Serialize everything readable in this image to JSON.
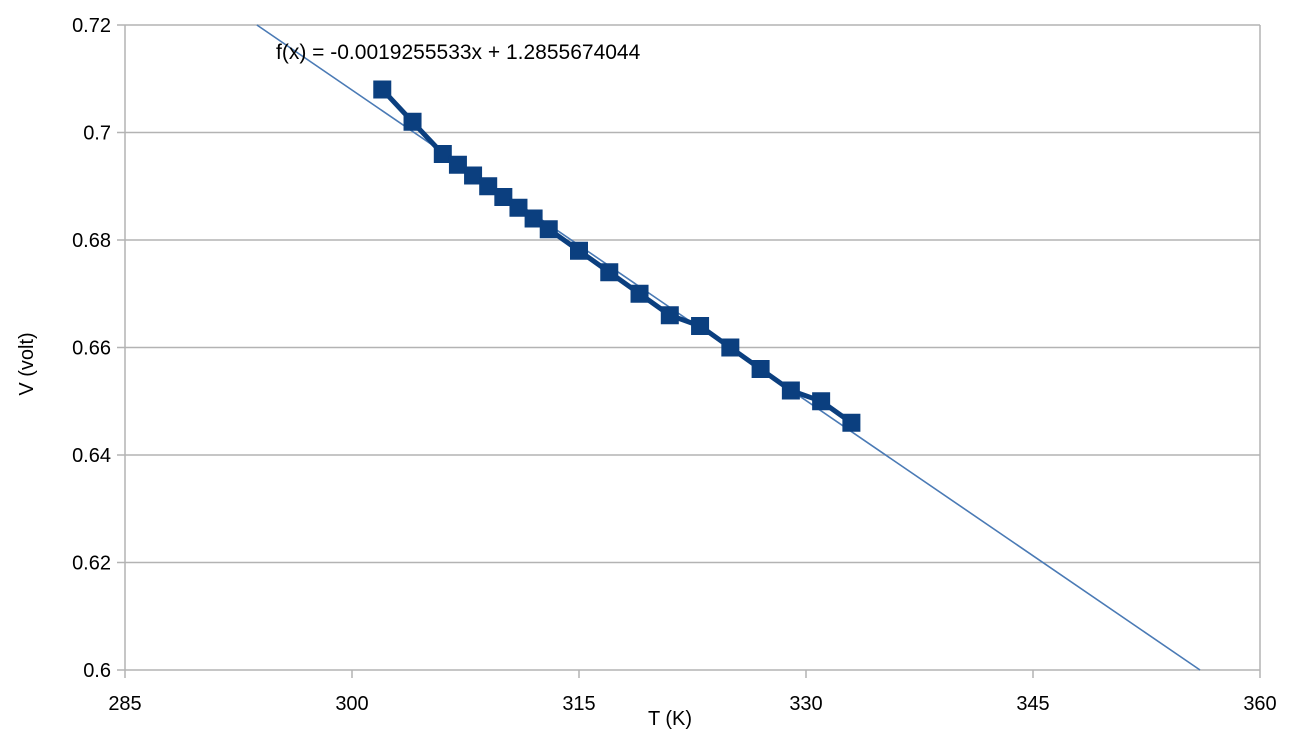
{
  "chart_data": {
    "type": "scatter",
    "xlabel": "T (K)",
    "ylabel": "V (volt)",
    "xlim": [
      285,
      360
    ],
    "ylim": [
      0.6,
      0.72
    ],
    "x_ticks": [
      285,
      300,
      315,
      330,
      345,
      360
    ],
    "y_ticks": [
      0.6,
      0.62,
      0.64,
      0.66,
      0.68,
      0.7,
      0.72
    ],
    "x_tick_labels": [
      "285",
      "300",
      "315",
      "330",
      "345",
      "360"
    ],
    "y_tick_labels": [
      "0.6",
      "0.62",
      "0.64",
      "0.66",
      "0.68",
      "0.7",
      "0.72"
    ],
    "grid": "horizontal",
    "series": [
      {
        "marker": "square",
        "color": "#0b3f7f",
        "connected": true,
        "x": [
          302,
          304,
          306,
          307,
          308,
          309,
          310,
          311,
          312,
          313,
          315,
          317,
          319,
          321,
          323,
          325,
          327,
          329,
          331,
          333
        ],
        "y": [
          0.708,
          0.702,
          0.696,
          0.694,
          0.692,
          0.69,
          0.688,
          0.686,
          0.684,
          0.682,
          0.678,
          0.674,
          0.67,
          0.666,
          0.664,
          0.66,
          0.656,
          0.652,
          0.65,
          0.646
        ]
      }
    ],
    "trendline": {
      "slope": -0.0019255533,
      "intercept": 1.2855674044,
      "color": "#4a7ab5",
      "equation": "f(x) = -0.0019255533x + 1.2855674044"
    }
  }
}
